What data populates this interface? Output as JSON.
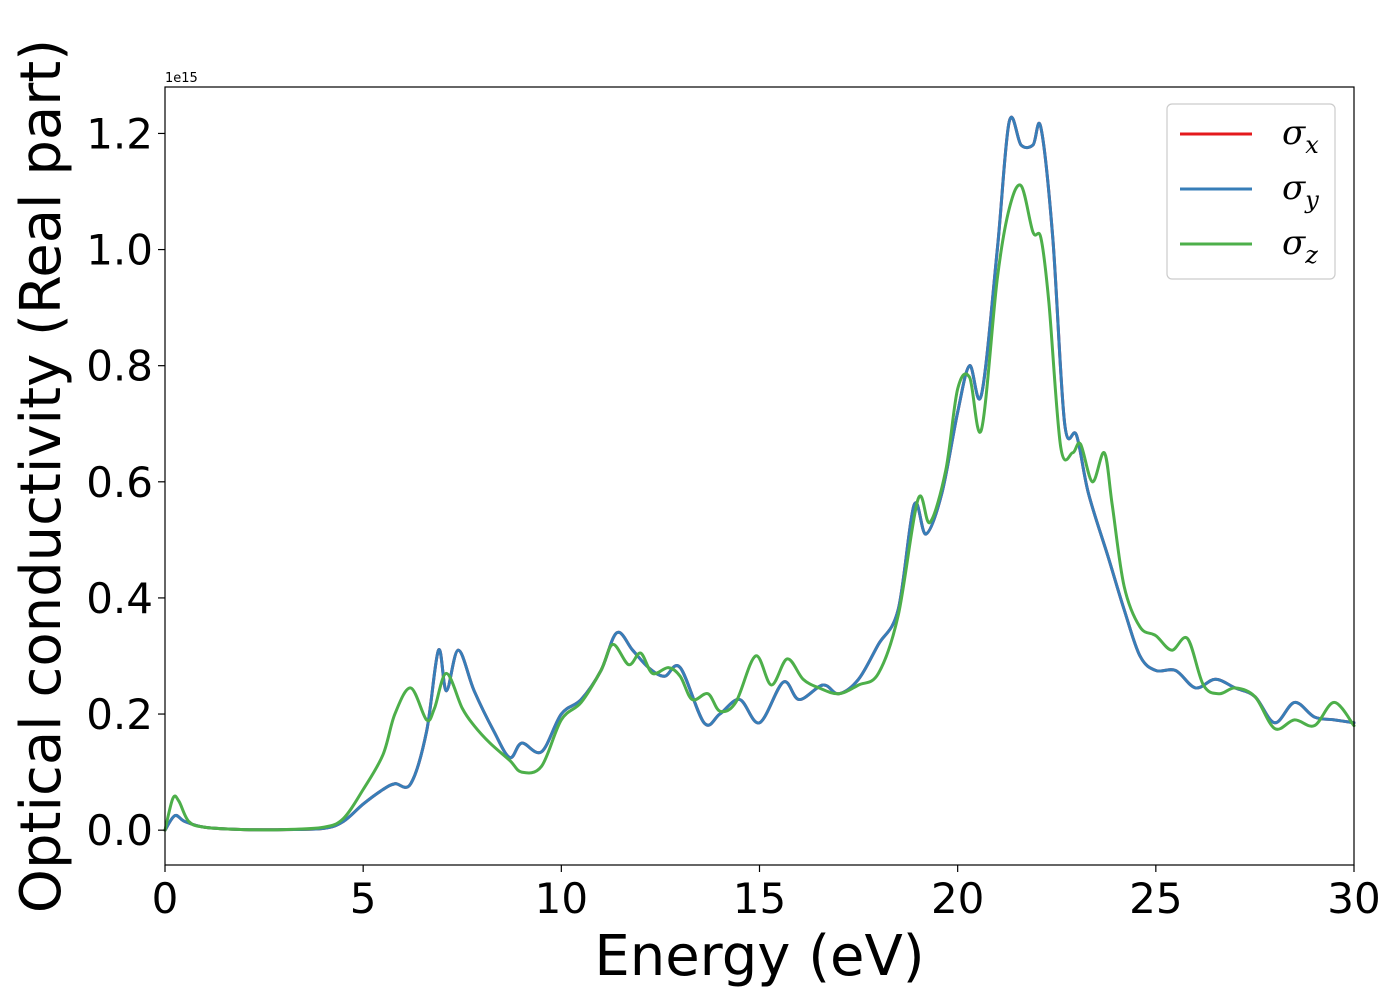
{
  "chart_data": {
    "type": "line",
    "xlabel": "Energy (eV)",
    "ylabel": "Optical conductivity (Real part)",
    "y_offset_label": "1e15",
    "xlim": [
      0,
      30
    ],
    "ylim": [
      -0.06,
      1.28
    ],
    "x_ticks": [
      0,
      5,
      10,
      15,
      20,
      25,
      30
    ],
    "x_tick_labels": [
      "0",
      "5",
      "10",
      "15",
      "20",
      "25",
      "30"
    ],
    "y_ticks": [
      0.0,
      0.2,
      0.4,
      0.6,
      0.8,
      1.0,
      1.2
    ],
    "y_tick_labels": [
      "0.0",
      "0.2",
      "0.4",
      "0.6",
      "0.8",
      "1.0",
      "1.2"
    ],
    "grid": false,
    "legend_position": "top-right",
    "series": [
      {
        "name": "σx",
        "symbol": "σ",
        "subscript": "x",
        "color": "#e41a1c",
        "linewidth": 3,
        "x": [
          0,
          0.25,
          0.5,
          1,
          2,
          3,
          4,
          4.5,
          5,
          5.5,
          5.8,
          6.2,
          6.6,
          6.9,
          7.1,
          7.4,
          7.8,
          8.3,
          8.7,
          9,
          9.5,
          10,
          10.5,
          11,
          11.4,
          11.8,
          12.2,
          12.6,
          13,
          13.6,
          14,
          14.5,
          15,
          15.6,
          16,
          16.6,
          17,
          17.5,
          18,
          18.5,
          18.9,
          19.2,
          19.6,
          20,
          20.3,
          20.6,
          21,
          21.3,
          21.6,
          21.9,
          22.1,
          22.4,
          22.7,
          23,
          23.3,
          23.8,
          24.2,
          24.6,
          25,
          25.5,
          26,
          26.5,
          27,
          27.5,
          28,
          28.5,
          29,
          29.5,
          30
        ],
        "y": [
          0.0,
          0.025,
          0.015,
          0.005,
          0.001,
          0.001,
          0.003,
          0.015,
          0.045,
          0.07,
          0.08,
          0.08,
          0.17,
          0.31,
          0.24,
          0.31,
          0.24,
          0.17,
          0.125,
          0.15,
          0.135,
          0.2,
          0.225,
          0.275,
          0.34,
          0.31,
          0.28,
          0.265,
          0.28,
          0.185,
          0.2,
          0.225,
          0.185,
          0.255,
          0.225,
          0.25,
          0.235,
          0.26,
          0.32,
          0.38,
          0.56,
          0.51,
          0.58,
          0.72,
          0.8,
          0.75,
          1.0,
          1.22,
          1.18,
          1.18,
          1.21,
          1.02,
          0.7,
          0.68,
          0.58,
          0.47,
          0.38,
          0.3,
          0.275,
          0.275,
          0.245,
          0.26,
          0.245,
          0.23,
          0.185,
          0.22,
          0.195,
          0.19,
          0.185
        ]
      },
      {
        "name": "σy",
        "symbol": "σ",
        "subscript": "y",
        "color": "#377eb8",
        "linewidth": 3,
        "x": [
          0,
          0.25,
          0.5,
          1,
          2,
          3,
          4,
          4.5,
          5,
          5.5,
          5.8,
          6.2,
          6.6,
          6.9,
          7.1,
          7.4,
          7.8,
          8.3,
          8.7,
          9,
          9.5,
          10,
          10.5,
          11,
          11.4,
          11.8,
          12.2,
          12.6,
          13,
          13.6,
          14,
          14.5,
          15,
          15.6,
          16,
          16.6,
          17,
          17.5,
          18,
          18.5,
          18.9,
          19.2,
          19.6,
          20,
          20.3,
          20.6,
          21,
          21.3,
          21.6,
          21.9,
          22.1,
          22.4,
          22.7,
          23,
          23.3,
          23.8,
          24.2,
          24.6,
          25,
          25.5,
          26,
          26.5,
          27,
          27.5,
          28,
          28.5,
          29,
          29.5,
          30
        ],
        "y": [
          0.0,
          0.025,
          0.015,
          0.005,
          0.001,
          0.001,
          0.003,
          0.015,
          0.045,
          0.07,
          0.08,
          0.08,
          0.17,
          0.31,
          0.24,
          0.31,
          0.24,
          0.17,
          0.125,
          0.15,
          0.135,
          0.2,
          0.225,
          0.275,
          0.34,
          0.31,
          0.28,
          0.265,
          0.28,
          0.185,
          0.2,
          0.225,
          0.185,
          0.255,
          0.225,
          0.25,
          0.235,
          0.26,
          0.32,
          0.38,
          0.56,
          0.51,
          0.58,
          0.72,
          0.8,
          0.75,
          1.0,
          1.22,
          1.18,
          1.18,
          1.21,
          1.02,
          0.7,
          0.68,
          0.58,
          0.47,
          0.38,
          0.3,
          0.275,
          0.275,
          0.245,
          0.26,
          0.245,
          0.23,
          0.185,
          0.22,
          0.195,
          0.19,
          0.185
        ]
      },
      {
        "name": "σz",
        "symbol": "σ",
        "subscript": "z",
        "color": "#4daf4a",
        "linewidth": 3,
        "x": [
          0,
          0.2,
          0.35,
          0.6,
          1,
          2,
          3,
          4,
          4.5,
          5,
          5.5,
          5.8,
          6.2,
          6.6,
          6.8,
          7.1,
          7.5,
          7.8,
          8.2,
          8.7,
          9,
          9.5,
          10,
          10.5,
          11,
          11.3,
          11.7,
          12,
          12.3,
          12.7,
          13,
          13.3,
          13.7,
          14,
          14.4,
          14.9,
          15.3,
          15.7,
          16.1,
          16.5,
          17,
          17.5,
          18,
          18.5,
          19,
          19.3,
          19.7,
          20,
          20.3,
          20.6,
          21,
          21.3,
          21.6,
          21.9,
          22.1,
          22.3,
          22.6,
          22.9,
          23.1,
          23.4,
          23.7,
          23.9,
          24.2,
          24.6,
          25,
          25.4,
          25.8,
          26.2,
          26.6,
          27,
          27.5,
          28,
          28.5,
          29,
          29.5,
          30
        ],
        "y": [
          0.0,
          0.055,
          0.05,
          0.015,
          0.005,
          0.001,
          0.001,
          0.005,
          0.02,
          0.07,
          0.13,
          0.2,
          0.245,
          0.19,
          0.21,
          0.27,
          0.21,
          0.18,
          0.15,
          0.12,
          0.1,
          0.11,
          0.19,
          0.22,
          0.275,
          0.32,
          0.285,
          0.305,
          0.27,
          0.28,
          0.265,
          0.225,
          0.235,
          0.205,
          0.22,
          0.3,
          0.25,
          0.295,
          0.26,
          0.245,
          0.235,
          0.25,
          0.27,
          0.37,
          0.57,
          0.53,
          0.62,
          0.76,
          0.78,
          0.69,
          0.95,
          1.07,
          1.11,
          1.03,
          1.02,
          0.91,
          0.66,
          0.65,
          0.665,
          0.6,
          0.65,
          0.56,
          0.42,
          0.35,
          0.335,
          0.31,
          0.33,
          0.25,
          0.235,
          0.245,
          0.23,
          0.175,
          0.19,
          0.18,
          0.22,
          0.18
        ]
      }
    ]
  }
}
